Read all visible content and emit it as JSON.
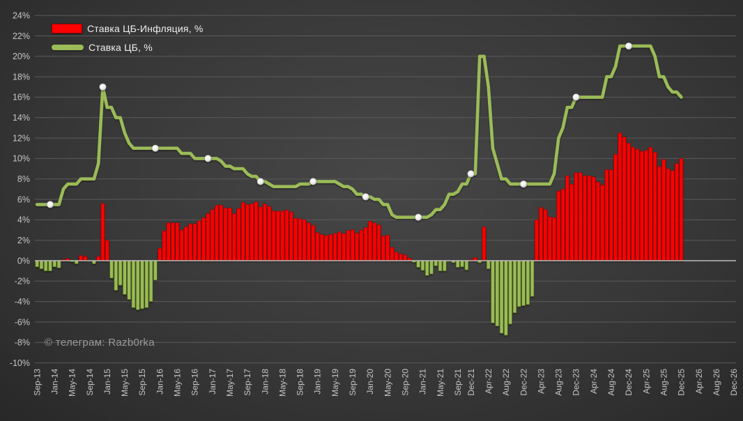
{
  "watermark": "© телеграм: Razb0rka",
  "legend": {
    "bars_label": "Ставка ЦБ-Инфляция, %",
    "line_label": "Ставка ЦБ, %"
  },
  "colors": {
    "bar_positive": "#fe0000",
    "bar_positive_border": "#a00000",
    "bar_negative": "#9bbb59",
    "bar_negative_border": "#4f6a1e",
    "line": "#9bbb59",
    "marker_stroke": "#9e9e9e",
    "grid": "#5b5b5b",
    "zero_line": "#bdbdbd",
    "tick_text": "#c6c6c6",
    "legend_text": "#efefef",
    "watermark_text": "#9a9a9a"
  },
  "chart_data": {
    "type": "bar+line",
    "title": "",
    "xlabel": "",
    "ylabel": "",
    "x_unit": "month",
    "x_start": "Sep-13",
    "x_end_axis": "Dec-26",
    "x_slots": 160,
    "ylim": [
      -10,
      24
    ],
    "grid": "horizontal",
    "legend_position": "top-left",
    "y_ticks": [
      24,
      22,
      20,
      18,
      16,
      14,
      12,
      10,
      8,
      6,
      4,
      2,
      0,
      -2,
      -4,
      -6,
      -8,
      -10
    ],
    "x_tick_indices": [
      0,
      4,
      8,
      12,
      16,
      20,
      24,
      28,
      32,
      36,
      40,
      44,
      48,
      52,
      56,
      60,
      64,
      68,
      72,
      76,
      80,
      84,
      88,
      92,
      96,
      99,
      103,
      107,
      111,
      115,
      119,
      123,
      127,
      131,
      135,
      139,
      143,
      147,
      151,
      155,
      159
    ],
    "x_tick_labels": [
      "Sep-13",
      "Jan-14",
      "May-14",
      "Sep-14",
      "Jan-15",
      "May-15",
      "Sep-15",
      "Jan-16",
      "May-16",
      "Sep-16",
      "Jan-17",
      "May-17",
      "Sep-17",
      "Jan-18",
      "May-18",
      "Sep-18",
      "Jan-19",
      "May-19",
      "Sep-19",
      "Jan-20",
      "May-20",
      "Sep-20",
      "Jan-21",
      "May-21",
      "Sep-21",
      "Dec-21",
      "Apr-22",
      "Aug-22",
      "Dec-22",
      "Apr-23",
      "Aug-23",
      "Dec-23",
      "Apr-24",
      "Aug-24",
      "Dec-24",
      "Apr-25",
      "Aug-25",
      "Dec-25",
      "Apr-26",
      "Aug-26",
      "Dec-26"
    ],
    "bar_series": {
      "name": "Ставка ЦБ-Инфляция, %",
      "values": [
        -0.6,
        -0.8,
        -1.0,
        -1.0,
        -0.6,
        -0.7,
        0.1,
        0.2,
        -0.1,
        -0.3,
        0.5,
        0.4,
        0.0,
        -0.3,
        0.4,
        5.6,
        2.0,
        -1.7,
        -2.9,
        -2.4,
        -3.3,
        -3.8,
        -4.6,
        -4.8,
        -4.7,
        -4.6,
        -4.0,
        -1.9,
        1.2,
        2.9,
        3.7,
        3.7,
        3.7,
        3.0,
        3.3,
        3.6,
        3.6,
        3.9,
        4.2,
        4.6,
        5.0,
        5.4,
        5.45,
        5.15,
        5.15,
        4.6,
        5.1,
        5.7,
        5.5,
        5.55,
        5.75,
        5.25,
        5.55,
        5.3,
        4.85,
        4.85,
        4.85,
        4.95,
        4.75,
        4.15,
        4.1,
        4.0,
        3.7,
        3.45,
        2.75,
        2.55,
        2.45,
        2.55,
        2.65,
        2.8,
        2.65,
        2.95,
        3.0,
        2.7,
        3.0,
        3.25,
        3.85,
        3.7,
        3.5,
        2.4,
        2.5,
        1.3,
        0.85,
        0.65,
        0.55,
        0.25,
        -0.15,
        -0.65,
        -0.95,
        -1.45,
        -1.3,
        -0.5,
        -1.0,
        -1.0,
        0.0,
        -0.2,
        -0.65,
        -0.6,
        -0.9,
        0.1,
        0.3,
        -0.2,
        3.3,
        -0.8,
        -6.1,
        -6.4,
        -7.1,
        -7.3,
        -6.2,
        -5.1,
        -4.5,
        -4.4,
        -4.3,
        -3.5,
        4.0,
        5.2,
        5.0,
        4.3,
        4.2,
        6.8,
        7.0,
        8.3,
        7.5,
        8.6,
        8.6,
        8.3,
        8.3,
        8.2,
        7.7,
        7.4,
        8.9,
        8.9,
        10.4,
        12.5,
        12.1,
        11.5,
        11.1,
        10.9,
        10.7,
        10.8,
        11.1,
        10.6,
        9.2,
        9.9,
        9.0,
        8.8,
        9.5,
        10.0
      ]
    },
    "line_series": {
      "name": "Ставка ЦБ, %",
      "values": [
        5.5,
        5.5,
        5.5,
        5.5,
        5.5,
        5.5,
        7.0,
        7.5,
        7.5,
        7.5,
        8.0,
        8.0,
        8.0,
        8.0,
        9.5,
        17.0,
        15.0,
        15.0,
        14.0,
        14.0,
        12.5,
        11.5,
        11.0,
        11.0,
        11.0,
        11.0,
        11.0,
        11.0,
        11.0,
        11.0,
        11.0,
        11.0,
        11.0,
        10.5,
        10.5,
        10.5,
        10.0,
        10.0,
        10.0,
        10.0,
        10.0,
        10.0,
        9.75,
        9.25,
        9.25,
        9.0,
        9.0,
        9.0,
        8.5,
        8.25,
        8.25,
        7.75,
        7.75,
        7.5,
        7.25,
        7.25,
        7.25,
        7.25,
        7.25,
        7.25,
        7.5,
        7.5,
        7.5,
        7.75,
        7.75,
        7.75,
        7.75,
        7.75,
        7.75,
        7.5,
        7.25,
        7.25,
        7.0,
        6.5,
        6.5,
        6.25,
        6.25,
        6.0,
        6.0,
        5.5,
        5.5,
        4.5,
        4.25,
        4.25,
        4.25,
        4.25,
        4.25,
        4.25,
        4.25,
        4.25,
        4.5,
        5.0,
        5.0,
        5.5,
        6.5,
        6.5,
        6.75,
        7.5,
        7.5,
        8.5,
        8.5,
        20.0,
        20.0,
        17.0,
        11.0,
        9.5,
        8.0,
        8.0,
        7.5,
        7.5,
        7.5,
        7.5,
        7.5,
        7.5,
        7.5,
        7.5,
        7.5,
        7.5,
        8.5,
        12.0,
        13.0,
        15.0,
        15.0,
        16.0,
        16.0,
        16.0,
        16.0,
        16.0,
        16.0,
        16.0,
        18.0,
        18.0,
        19.0,
        21.0,
        21.0,
        21.0,
        21.0,
        21.0,
        21.0,
        21.0,
        21.0,
        20.0,
        18.0,
        18.0,
        17.0,
        16.5,
        16.5,
        16.0
      ],
      "marker_indices": [
        3,
        15,
        27,
        39,
        51,
        63,
        75,
        87,
        99,
        111,
        123,
        135
      ],
      "marker_label": "December values"
    }
  }
}
